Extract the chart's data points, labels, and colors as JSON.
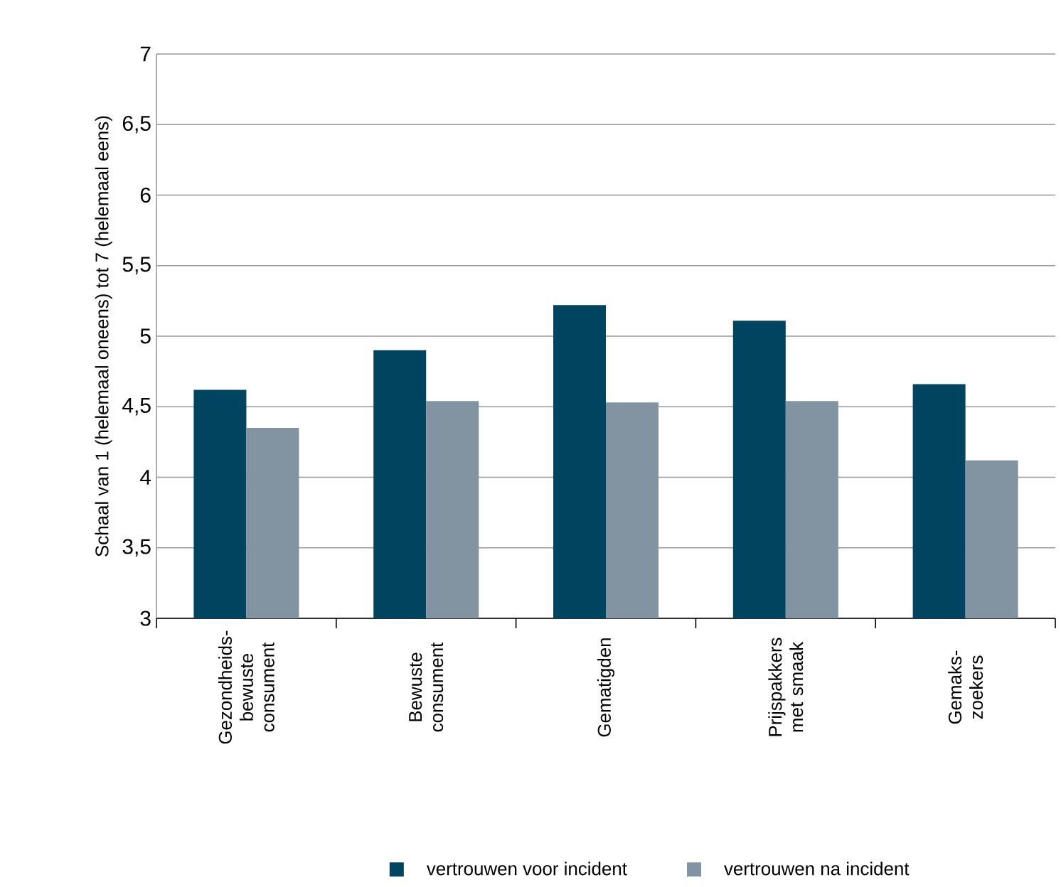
{
  "chart_data": {
    "type": "bar",
    "ylabel": "Schaal van 1 (helemaal oneens) tot 7 (helemaal eens)",
    "categories": [
      "Gezondheids-bewuste consument",
      "Bewuste consument",
      "Gematigden",
      "Prijspakkers met smaak",
      "Gemaks-zoekers"
    ],
    "series": [
      {
        "name": "vertrouwen voor incident",
        "color": "#00445f",
        "values": [
          4.62,
          4.9,
          5.22,
          5.11,
          4.66
        ]
      },
      {
        "name": "vertrouwen na incident",
        "color": "#8293a1",
        "values": [
          4.35,
          4.54,
          4.53,
          4.54,
          4.12
        ]
      }
    ],
    "ylim": [
      3,
      7
    ],
    "yticks": [
      {
        "value": 3,
        "label": "3"
      },
      {
        "value": 3.5,
        "label": "3,5"
      },
      {
        "value": 4,
        "label": "4"
      },
      {
        "value": 4.5,
        "label": "4,5"
      },
      {
        "value": 5,
        "label": "5"
      },
      {
        "value": 5.5,
        "label": "5,5"
      },
      {
        "value": 6,
        "label": "6"
      },
      {
        "value": 6.5,
        "label": "6,5"
      },
      {
        "value": 7,
        "label": "7"
      }
    ],
    "grid": "y",
    "legend": "bottom"
  }
}
